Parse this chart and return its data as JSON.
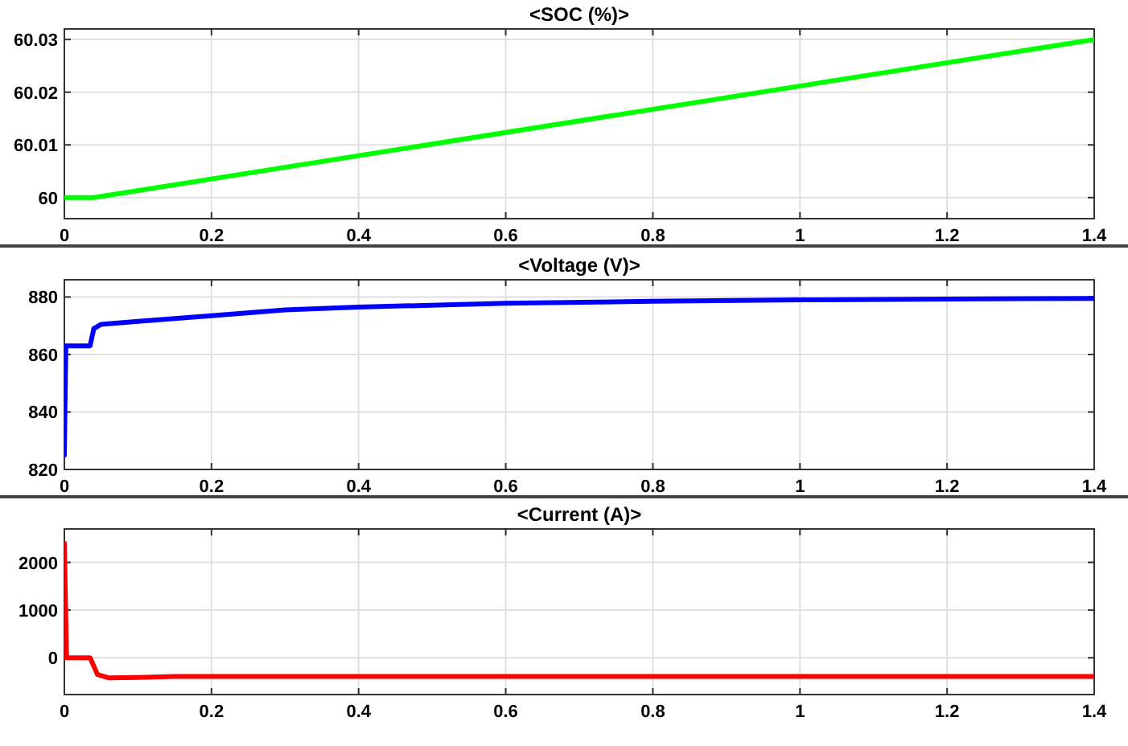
{
  "chart_data": [
    {
      "type": "line",
      "title": "<SOC (%)>",
      "x": [
        0,
        0.04,
        1.4
      ],
      "series": [
        {
          "color": "#00ff00",
          "values": [
            60,
            60,
            60.03
          ]
        }
      ],
      "xlim": [
        0,
        1.4
      ],
      "ylim": [
        59.996,
        60.032
      ],
      "xticks": [
        0,
        0.2,
        0.4,
        0.6,
        0.8,
        1,
        1.2,
        1.4
      ],
      "yticks": [
        60,
        60.01,
        60.02,
        60.03
      ],
      "grid": true
    },
    {
      "type": "line",
      "title": "<Voltage (V)>",
      "x": [
        0,
        0.002,
        0.035,
        0.04,
        0.05,
        0.1,
        0.15,
        0.2,
        0.3,
        0.4,
        0.6,
        0.8,
        1,
        1.2,
        1.4
      ],
      "series": [
        {
          "color": "#0000ff",
          "values": [
            825,
            863,
            863,
            869,
            870.5,
            871.5,
            872.5,
            873.5,
            875.5,
            876.5,
            877.8,
            878.5,
            879,
            879.3,
            879.5
          ]
        }
      ],
      "xlim": [
        0,
        1.4
      ],
      "ylim": [
        820,
        886
      ],
      "xticks": [
        0,
        0.2,
        0.4,
        0.6,
        0.8,
        1,
        1.2,
        1.4
      ],
      "yticks": [
        820,
        840,
        860,
        880
      ],
      "grid": true
    },
    {
      "type": "line",
      "title": "<Current (A)>",
      "x": [
        0,
        0.003,
        0.035,
        0.045,
        0.06,
        0.1,
        0.15,
        0.2,
        1.4
      ],
      "series": [
        {
          "color": "#ff0000",
          "values": [
            2400,
            0,
            0,
            -350,
            -420,
            -410,
            -390,
            -390,
            -390
          ]
        }
      ],
      "xlim": [
        0,
        1.4
      ],
      "ylim": [
        -770,
        2700
      ],
      "xticks": [
        0,
        0.2,
        0.4,
        0.6,
        0.8,
        1,
        1.2,
        1.4
      ],
      "yticks": [
        0,
        1000,
        2000
      ],
      "grid": true
    }
  ]
}
